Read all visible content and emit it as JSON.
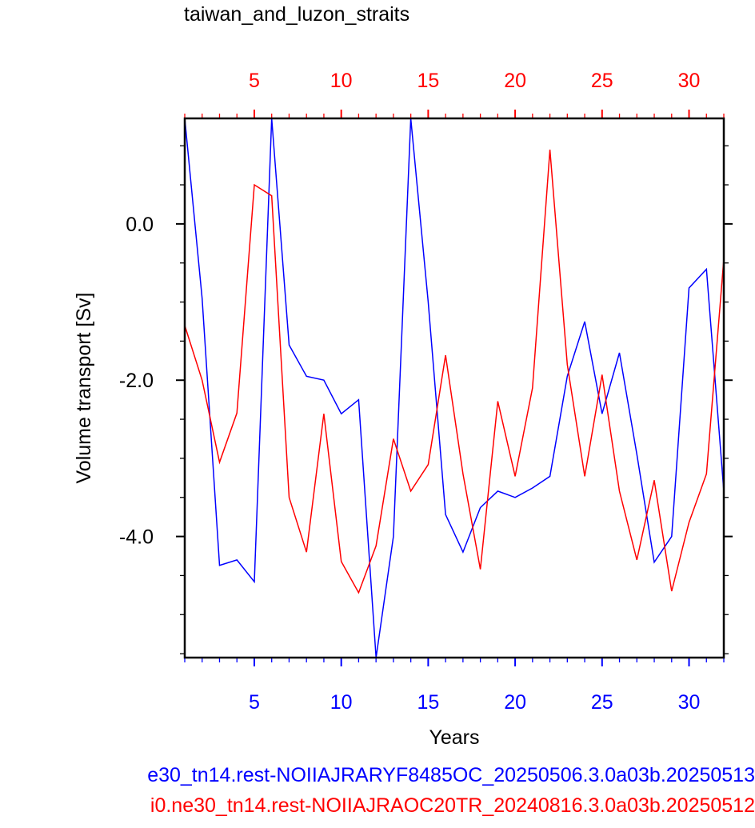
{
  "chart_data": {
    "type": "line",
    "title": "taiwan_and_luzon_straits",
    "xlabel": "Years",
    "ylabel": "Volume transport [Sv]",
    "xlim": [
      1,
      32
    ],
    "ylim": [
      -5.55,
      1.35
    ],
    "x_ticks": [
      5,
      10,
      15,
      20,
      25,
      30
    ],
    "y_ticks": [
      0.0,
      -2.0,
      -4.0
    ],
    "y_tick_labels": [
      "0.0",
      "-2.0",
      "-4.0"
    ],
    "x_top_color": "#ff0000",
    "x_bottom_color": "#0000ff",
    "x": [
      1,
      2,
      3,
      4,
      5,
      6,
      7,
      8,
      9,
      10,
      11,
      12,
      13,
      14,
      15,
      16,
      17,
      18,
      19,
      20,
      21,
      22,
      23,
      24,
      25,
      26,
      27,
      28,
      29,
      30,
      31,
      32
    ],
    "series": [
      {
        "name": "e30_tn14.rest-NOIIAJRARYF8485OC_20250506.3.0a03b.20250513",
        "color": "#0000ff",
        "values": [
          1.35,
          -0.95,
          -4.37,
          -4.3,
          -4.58,
          1.35,
          -1.55,
          -1.95,
          -2.0,
          -2.43,
          -2.25,
          -5.55,
          -4.0,
          1.35,
          -1.0,
          -3.72,
          -4.2,
          -3.63,
          -3.42,
          -3.5,
          -3.38,
          -3.23,
          -1.95,
          -1.25,
          -2.43,
          -1.65,
          -2.95,
          -4.33,
          -4.0,
          -0.82,
          -0.58,
          -3.42
        ]
      },
      {
        "name": "i0.ne30_tn14.rest-NOIIAJRAOC20TR_20240816.3.0a03b.20250512",
        "color": "#ff0000",
        "values": [
          -1.3,
          -2.0,
          -3.05,
          -2.42,
          0.5,
          0.36,
          -3.5,
          -4.2,
          -2.43,
          -4.32,
          -4.72,
          -4.12,
          -2.75,
          -3.42,
          -3.08,
          -1.68,
          -3.2,
          -4.42,
          -2.27,
          -3.23,
          -2.1,
          0.95,
          -1.8,
          -3.23,
          -1.93,
          -3.42,
          -4.3,
          -3.28,
          -4.7,
          -3.82,
          -3.2,
          -0.45
        ]
      }
    ]
  }
}
